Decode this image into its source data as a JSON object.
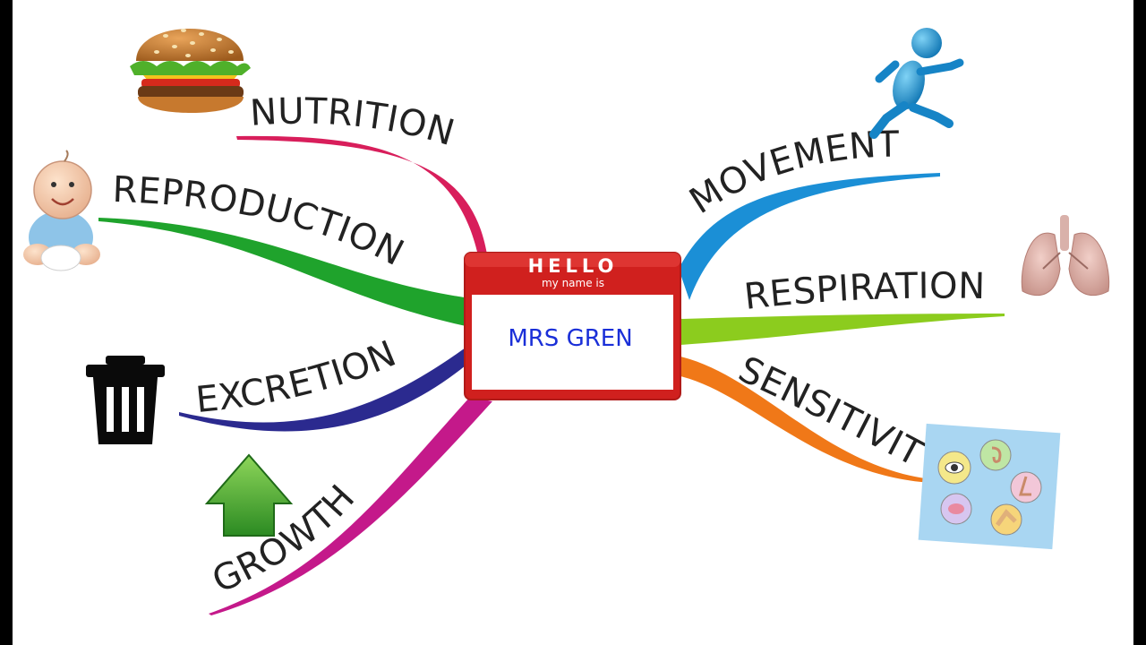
{
  "name_tag": {
    "hello": "HELLO",
    "subtitle": "my name is",
    "name": "MRS GREN"
  },
  "branches": [
    {
      "id": "nutrition",
      "label": "NUTRITION",
      "color": "#d81e5b",
      "icon": "burger-icon"
    },
    {
      "id": "reproduction",
      "label": "REPRODUCTION",
      "color": "#1fa32c",
      "icon": "baby-icon"
    },
    {
      "id": "excretion",
      "label": "EXCRETION",
      "color": "#2b2a8f",
      "icon": "trash-can-icon"
    },
    {
      "id": "growth",
      "label": "GROWTH",
      "color": "#c4198a",
      "icon": "up-arrow-icon"
    },
    {
      "id": "movement",
      "label": "MOVEMENT",
      "color": "#1b8fd6",
      "icon": "running-figure-icon"
    },
    {
      "id": "respiration",
      "label": "RESPIRATION",
      "color": "#8ccc1e",
      "icon": "lungs-icon"
    },
    {
      "id": "sensitivity",
      "label": "SENSITIVITY",
      "color": "#f07818",
      "icon": "senses-icon"
    }
  ],
  "colors": {
    "tag_red": "#d0201e",
    "tag_name": "#1a2fd8",
    "background": "#ffffff"
  }
}
